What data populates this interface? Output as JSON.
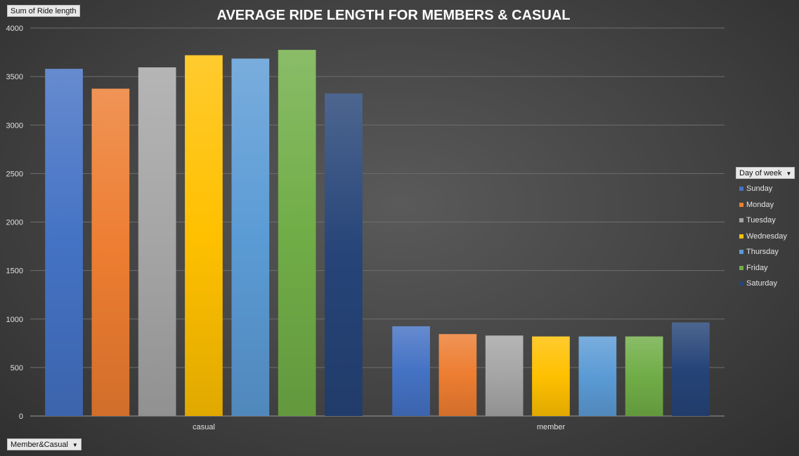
{
  "chart_data": {
    "type": "bar",
    "title": "AVERAGE RIDE LENGTH FOR MEMBERS & CASUAL",
    "categories": [
      "casual",
      "member"
    ],
    "ylim": [
      0,
      4000
    ],
    "yticks": [
      0,
      500,
      1000,
      1500,
      2000,
      2500,
      3000,
      3500,
      4000
    ],
    "grid": true,
    "legend_position": "right",
    "series": [
      {
        "name": "Sunday",
        "color": "#4472c4",
        "values": [
          3580,
          925
        ]
      },
      {
        "name": "Monday",
        "color": "#ed7d31",
        "values": [
          3375,
          845
        ]
      },
      {
        "name": "Tuesday",
        "color": "#a5a5a5",
        "values": [
          3595,
          830
        ]
      },
      {
        "name": "Wednesday",
        "color": "#ffc000",
        "values": [
          3720,
          820
        ]
      },
      {
        "name": "Thursday",
        "color": "#5b9bd5",
        "values": [
          3685,
          820
        ]
      },
      {
        "name": "Friday",
        "color": "#70ad47",
        "values": [
          3775,
          820
        ]
      },
      {
        "name": "Saturday",
        "color": "#264478",
        "values": [
          3325,
          965
        ]
      }
    ]
  },
  "pivot_fields": {
    "value_field": "Sum of Ride length",
    "legend_field": "Day of week",
    "axis_field": "Member&Casual",
    "dropdown_icon": "chevron-down-icon"
  }
}
